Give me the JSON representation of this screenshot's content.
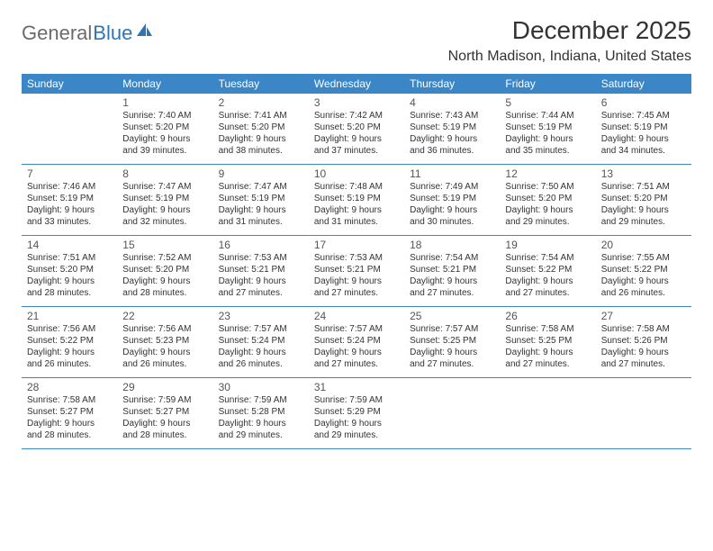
{
  "logo": {
    "text1": "General",
    "text2": "Blue"
  },
  "title": "December 2025",
  "location": "North Madison, Indiana, United States",
  "colors": {
    "header_bg": "#3b86c6",
    "header_text": "#ffffff",
    "border": "#3b86c6",
    "logo_gray": "#6b6b6b",
    "logo_blue": "#2d76b6"
  },
  "weekdays": [
    "Sunday",
    "Monday",
    "Tuesday",
    "Wednesday",
    "Thursday",
    "Friday",
    "Saturday"
  ],
  "weeks": [
    [
      {
        "n": "",
        "sr": "",
        "ss": "",
        "d1": "",
        "d2": ""
      },
      {
        "n": "1",
        "sr": "Sunrise: 7:40 AM",
        "ss": "Sunset: 5:20 PM",
        "d1": "Daylight: 9 hours",
        "d2": "and 39 minutes."
      },
      {
        "n": "2",
        "sr": "Sunrise: 7:41 AM",
        "ss": "Sunset: 5:20 PM",
        "d1": "Daylight: 9 hours",
        "d2": "and 38 minutes."
      },
      {
        "n": "3",
        "sr": "Sunrise: 7:42 AM",
        "ss": "Sunset: 5:20 PM",
        "d1": "Daylight: 9 hours",
        "d2": "and 37 minutes."
      },
      {
        "n": "4",
        "sr": "Sunrise: 7:43 AM",
        "ss": "Sunset: 5:19 PM",
        "d1": "Daylight: 9 hours",
        "d2": "and 36 minutes."
      },
      {
        "n": "5",
        "sr": "Sunrise: 7:44 AM",
        "ss": "Sunset: 5:19 PM",
        "d1": "Daylight: 9 hours",
        "d2": "and 35 minutes."
      },
      {
        "n": "6",
        "sr": "Sunrise: 7:45 AM",
        "ss": "Sunset: 5:19 PM",
        "d1": "Daylight: 9 hours",
        "d2": "and 34 minutes."
      }
    ],
    [
      {
        "n": "7",
        "sr": "Sunrise: 7:46 AM",
        "ss": "Sunset: 5:19 PM",
        "d1": "Daylight: 9 hours",
        "d2": "and 33 minutes."
      },
      {
        "n": "8",
        "sr": "Sunrise: 7:47 AM",
        "ss": "Sunset: 5:19 PM",
        "d1": "Daylight: 9 hours",
        "d2": "and 32 minutes."
      },
      {
        "n": "9",
        "sr": "Sunrise: 7:47 AM",
        "ss": "Sunset: 5:19 PM",
        "d1": "Daylight: 9 hours",
        "d2": "and 31 minutes."
      },
      {
        "n": "10",
        "sr": "Sunrise: 7:48 AM",
        "ss": "Sunset: 5:19 PM",
        "d1": "Daylight: 9 hours",
        "d2": "and 31 minutes."
      },
      {
        "n": "11",
        "sr": "Sunrise: 7:49 AM",
        "ss": "Sunset: 5:19 PM",
        "d1": "Daylight: 9 hours",
        "d2": "and 30 minutes."
      },
      {
        "n": "12",
        "sr": "Sunrise: 7:50 AM",
        "ss": "Sunset: 5:20 PM",
        "d1": "Daylight: 9 hours",
        "d2": "and 29 minutes."
      },
      {
        "n": "13",
        "sr": "Sunrise: 7:51 AM",
        "ss": "Sunset: 5:20 PM",
        "d1": "Daylight: 9 hours",
        "d2": "and 29 minutes."
      }
    ],
    [
      {
        "n": "14",
        "sr": "Sunrise: 7:51 AM",
        "ss": "Sunset: 5:20 PM",
        "d1": "Daylight: 9 hours",
        "d2": "and 28 minutes."
      },
      {
        "n": "15",
        "sr": "Sunrise: 7:52 AM",
        "ss": "Sunset: 5:20 PM",
        "d1": "Daylight: 9 hours",
        "d2": "and 28 minutes."
      },
      {
        "n": "16",
        "sr": "Sunrise: 7:53 AM",
        "ss": "Sunset: 5:21 PM",
        "d1": "Daylight: 9 hours",
        "d2": "and 27 minutes."
      },
      {
        "n": "17",
        "sr": "Sunrise: 7:53 AM",
        "ss": "Sunset: 5:21 PM",
        "d1": "Daylight: 9 hours",
        "d2": "and 27 minutes."
      },
      {
        "n": "18",
        "sr": "Sunrise: 7:54 AM",
        "ss": "Sunset: 5:21 PM",
        "d1": "Daylight: 9 hours",
        "d2": "and 27 minutes."
      },
      {
        "n": "19",
        "sr": "Sunrise: 7:54 AM",
        "ss": "Sunset: 5:22 PM",
        "d1": "Daylight: 9 hours",
        "d2": "and 27 minutes."
      },
      {
        "n": "20",
        "sr": "Sunrise: 7:55 AM",
        "ss": "Sunset: 5:22 PM",
        "d1": "Daylight: 9 hours",
        "d2": "and 26 minutes."
      }
    ],
    [
      {
        "n": "21",
        "sr": "Sunrise: 7:56 AM",
        "ss": "Sunset: 5:22 PM",
        "d1": "Daylight: 9 hours",
        "d2": "and 26 minutes."
      },
      {
        "n": "22",
        "sr": "Sunrise: 7:56 AM",
        "ss": "Sunset: 5:23 PM",
        "d1": "Daylight: 9 hours",
        "d2": "and 26 minutes."
      },
      {
        "n": "23",
        "sr": "Sunrise: 7:57 AM",
        "ss": "Sunset: 5:24 PM",
        "d1": "Daylight: 9 hours",
        "d2": "and 26 minutes."
      },
      {
        "n": "24",
        "sr": "Sunrise: 7:57 AM",
        "ss": "Sunset: 5:24 PM",
        "d1": "Daylight: 9 hours",
        "d2": "and 27 minutes."
      },
      {
        "n": "25",
        "sr": "Sunrise: 7:57 AM",
        "ss": "Sunset: 5:25 PM",
        "d1": "Daylight: 9 hours",
        "d2": "and 27 minutes."
      },
      {
        "n": "26",
        "sr": "Sunrise: 7:58 AM",
        "ss": "Sunset: 5:25 PM",
        "d1": "Daylight: 9 hours",
        "d2": "and 27 minutes."
      },
      {
        "n": "27",
        "sr": "Sunrise: 7:58 AM",
        "ss": "Sunset: 5:26 PM",
        "d1": "Daylight: 9 hours",
        "d2": "and 27 minutes."
      }
    ],
    [
      {
        "n": "28",
        "sr": "Sunrise: 7:58 AM",
        "ss": "Sunset: 5:27 PM",
        "d1": "Daylight: 9 hours",
        "d2": "and 28 minutes."
      },
      {
        "n": "29",
        "sr": "Sunrise: 7:59 AM",
        "ss": "Sunset: 5:27 PM",
        "d1": "Daylight: 9 hours",
        "d2": "and 28 minutes."
      },
      {
        "n": "30",
        "sr": "Sunrise: 7:59 AM",
        "ss": "Sunset: 5:28 PM",
        "d1": "Daylight: 9 hours",
        "d2": "and 29 minutes."
      },
      {
        "n": "31",
        "sr": "Sunrise: 7:59 AM",
        "ss": "Sunset: 5:29 PM",
        "d1": "Daylight: 9 hours",
        "d2": "and 29 minutes."
      },
      {
        "n": "",
        "sr": "",
        "ss": "",
        "d1": "",
        "d2": ""
      },
      {
        "n": "",
        "sr": "",
        "ss": "",
        "d1": "",
        "d2": ""
      },
      {
        "n": "",
        "sr": "",
        "ss": "",
        "d1": "",
        "d2": ""
      }
    ]
  ]
}
